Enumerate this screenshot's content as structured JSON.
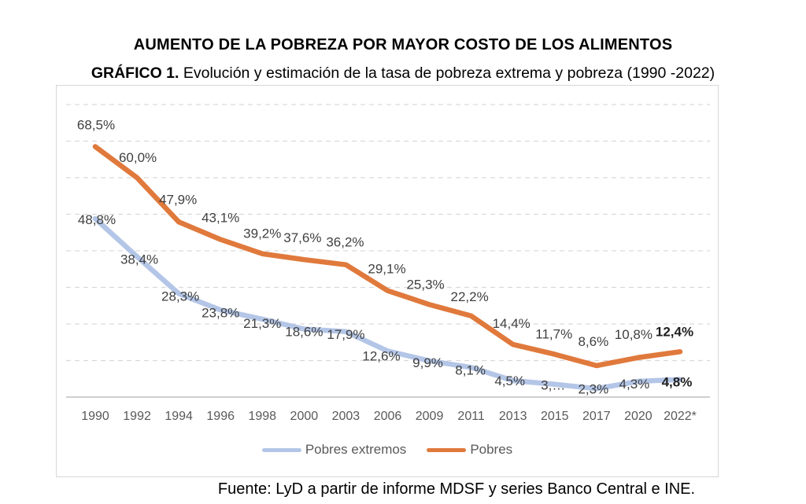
{
  "header": {
    "title": "AUMENTO DE LA POBREZA POR MAYOR COSTO DE LOS ALIMENTOS",
    "subtitle_prefix": "GRÁFICO 1.",
    "subtitle_text": " Evolución y estimación de la tasa de pobreza extrema y pobreza (1990 -2022)"
  },
  "footer": {
    "source": "Fuente: LyD a partir de informe MDSF y series Banco Central e INE."
  },
  "chart_data": {
    "type": "line",
    "title": "Evolución y estimación de la tasa de pobreza extrema y pobreza (1990-2022)",
    "categories": [
      "1990",
      "1992",
      "1994",
      "1996",
      "1998",
      "2000",
      "2003",
      "2006",
      "2009",
      "2011",
      "2013",
      "2015",
      "2017",
      "2020",
      "2022*"
    ],
    "series": [
      {
        "name": "Pobres extremos",
        "color": "#b4c6e7",
        "values": [
          48.8,
          38.4,
          28.3,
          23.8,
          21.3,
          18.6,
          17.9,
          12.6,
          9.9,
          8.1,
          4.5,
          3.5,
          2.3,
          4.3,
          4.8
        ],
        "labels": [
          "48,8%",
          "38,4%",
          "28,3%",
          "23,8%",
          "21,3%",
          "18,6%",
          "17,9%",
          "12,6%",
          "9,9%",
          "8,1%",
          "4,5%",
          "3,…",
          "2,3%",
          "4,3%",
          "4,8%"
        ]
      },
      {
        "name": "Pobres",
        "color": "#e0793c",
        "values": [
          68.5,
          60.0,
          47.9,
          43.1,
          39.2,
          37.6,
          36.2,
          29.1,
          25.3,
          22.2,
          14.4,
          11.7,
          8.6,
          10.8,
          12.4
        ],
        "labels": [
          "68,5%",
          "60,0%",
          "47,9%",
          "43,1%",
          "39,2%",
          "37,6%",
          "36,2%",
          "29,1%",
          "25,3%",
          "22,2%",
          "14,4%",
          "11,7%",
          "8,6%",
          "10,8%",
          "12,4%"
        ]
      }
    ],
    "ylim": [
      0,
      80
    ],
    "y_gridline_step": 10,
    "grid": "horizontal-dashed",
    "y_axis_tick_labels_visible": false,
    "data_labels_visible": true,
    "last_label_bold": true,
    "legend_position": "bottom",
    "axis_label_color": "#595959",
    "data_label_color": "#404040",
    "gridline_color": "#d9d9d9",
    "axis_line_color": "#bfbfbf"
  }
}
